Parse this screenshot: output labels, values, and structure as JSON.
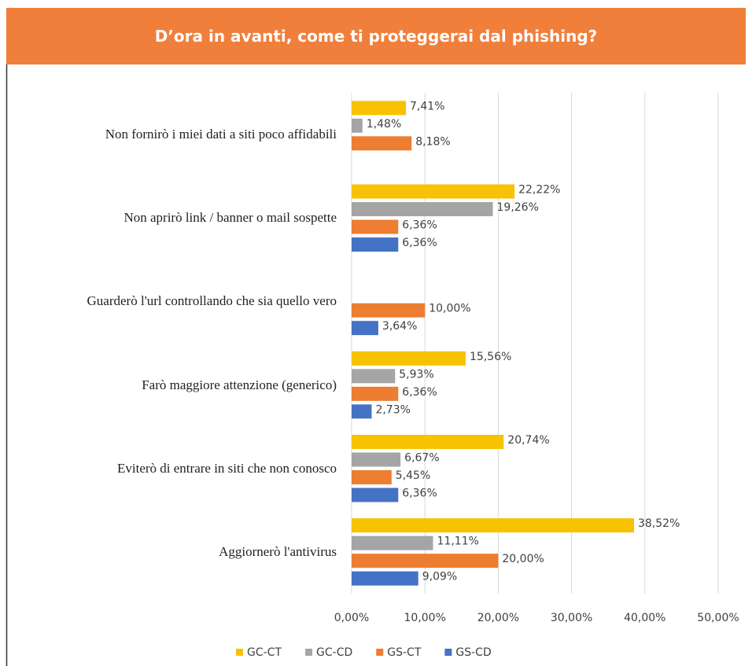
{
  "chart_data": {
    "type": "bar",
    "orientation": "horizontal",
    "title": "D’ora in avanti, come ti proteggerai dal phishing?",
    "categories": [
      "Non fornirò i miei dati a siti poco affidabili",
      "Non aprirò link / banner o mail sospette",
      "Guarderò l'url controllando che sia quello vero",
      "Farò maggiore attenzione (generico)",
      "Eviterò di entrare in siti che non conosco",
      "Aggiornerò l'antivirus"
    ],
    "series": [
      {
        "name": "GC-CT",
        "color": "#f7c200",
        "values": [
          7.41,
          22.22,
          null,
          15.56,
          20.74,
          38.52
        ],
        "value_labels": [
          "7,41%",
          "22,22%",
          null,
          "15,56%",
          "20,74%",
          "38,52%"
        ]
      },
      {
        "name": "GC-CD",
        "color": "#a5a5a5",
        "values": [
          1.48,
          19.26,
          null,
          5.93,
          6.67,
          11.11
        ],
        "value_labels": [
          "1,48%",
          "19,26%",
          null,
          "5,93%",
          "6,67%",
          "11,11%"
        ]
      },
      {
        "name": "GS-CT",
        "color": "#ed7d31",
        "values": [
          8.18,
          6.36,
          10.0,
          6.36,
          5.45,
          20.0
        ],
        "value_labels": [
          "8,18%",
          "6,36%",
          "10,00%",
          "6,36%",
          "5,45%",
          "20,00%"
        ]
      },
      {
        "name": "GS-CD",
        "color": "#4472c4",
        "values": [
          null,
          6.36,
          3.64,
          2.73,
          6.36,
          9.09
        ],
        "value_labels": [
          null,
          "6,36%",
          "3,64%",
          "2,73%",
          "6,36%",
          "9,09%"
        ]
      }
    ],
    "xlim": [
      0,
      50
    ],
    "xticks": [
      {
        "value": 0,
        "label": "0,00%"
      },
      {
        "value": 10,
        "label": "10,00%"
      },
      {
        "value": 20,
        "label": "20,00%"
      },
      {
        "value": 30,
        "label": "30,00%"
      },
      {
        "value": 40,
        "label": "40,00%"
      },
      {
        "value": 50,
        "label": "50,00%"
      }
    ],
    "grid": true,
    "legend": "bottom"
  }
}
